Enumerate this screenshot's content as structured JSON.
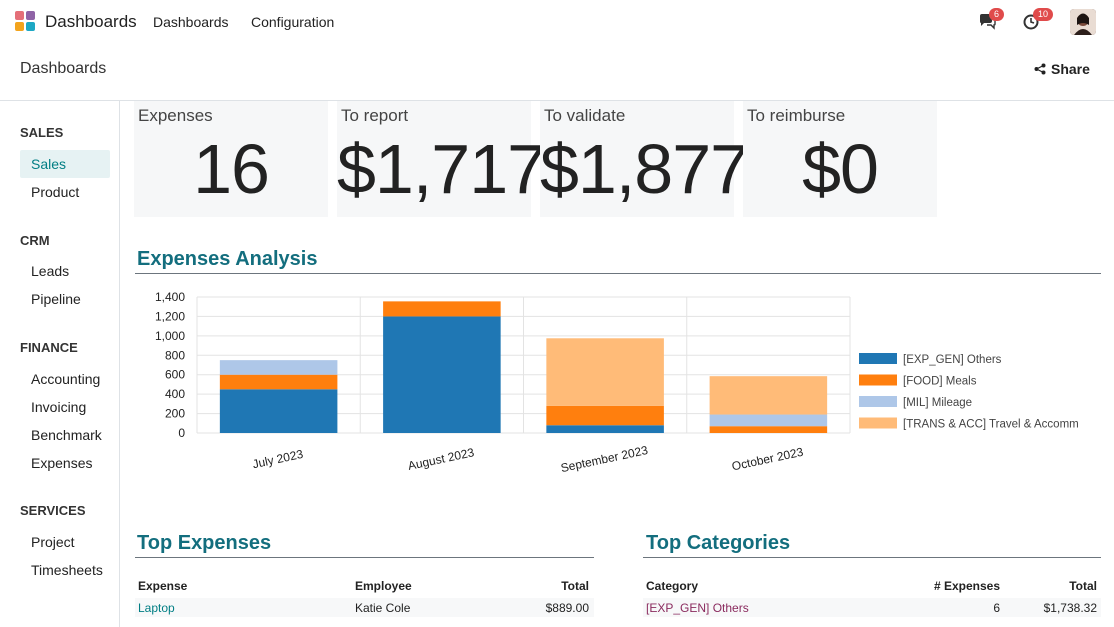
{
  "navbar": {
    "app_title": "Dashboards",
    "menus": [
      "Dashboards",
      "Configuration"
    ],
    "messages_count": "6",
    "activities_count": "10"
  },
  "control_panel": {
    "breadcrumb": "Dashboards",
    "share_label": "Share"
  },
  "sidebar": {
    "sections": [
      {
        "title": "SALES",
        "items": [
          "Sales",
          "Product"
        ]
      },
      {
        "title": "CRM",
        "items": [
          "Leads",
          "Pipeline"
        ]
      },
      {
        "title": "FINANCE",
        "items": [
          "Accounting",
          "Invoicing",
          "Benchmark",
          "Expenses"
        ]
      },
      {
        "title": "SERVICES",
        "items": [
          "Project",
          "Timesheets"
        ]
      }
    ],
    "active_item": "Sales"
  },
  "kpis": [
    {
      "label": "Expenses",
      "value": "16"
    },
    {
      "label": "To report",
      "value": "$1,717"
    },
    {
      "label": "To validate",
      "value": "$1,877"
    },
    {
      "label": "To reimburse",
      "value": "$0"
    }
  ],
  "analysis": {
    "heading": "Expenses Analysis"
  },
  "chart_data": {
    "type": "bar",
    "stacked": true,
    "title": "",
    "xlabel": "",
    "ylabel": "",
    "ylim": [
      0,
      1400
    ],
    "yticks": [
      0,
      200,
      400,
      600,
      800,
      1000,
      1200,
      1400
    ],
    "ytick_labels": [
      "0",
      "200",
      "400",
      "600",
      "800",
      "1,000",
      "1,200",
      "1,400"
    ],
    "categories": [
      "July 2023",
      "August 2023",
      "September 2023",
      "October 2023"
    ],
    "series": [
      {
        "name": "[EXP_GEN] Others",
        "color": "#1f77b4",
        "values": [
          450,
          1200,
          80,
          0
        ]
      },
      {
        "name": "[FOOD] Meals",
        "color": "#ff7f0e",
        "values": [
          150,
          155,
          200,
          70
        ]
      },
      {
        "name": "[MIL] Mileage",
        "color": "#aec7e8",
        "values": [
          150,
          0,
          0,
          120
        ]
      },
      {
        "name": "[TRANS & ACC] Travel & Accommodation",
        "color": "#ffbb78",
        "values": [
          0,
          0,
          695,
          395
        ]
      }
    ],
    "legend_labels": [
      "[EXP_GEN] Others",
      "[FOOD] Meals",
      "[MIL] Mileage",
      "[TRANS & ACC] Travel & Accomm"
    ],
    "legend": "right",
    "grid": true
  },
  "top_expenses": {
    "heading": "Top Expenses",
    "columns": [
      "Expense",
      "Employee",
      "Total"
    ],
    "rows": [
      {
        "expense": "Laptop",
        "employee": "Katie Cole",
        "total": "$889.00"
      }
    ]
  },
  "top_categories": {
    "heading": "Top Categories",
    "columns": [
      "Category",
      "# Expenses",
      "Total"
    ],
    "rows": [
      {
        "category": "[EXP_GEN] Others",
        "count": "6",
        "total": "$1,738.32"
      }
    ]
  },
  "colors": {
    "accent": "#017e84",
    "heading": "#136e7e",
    "badge": "#e04b4b"
  }
}
